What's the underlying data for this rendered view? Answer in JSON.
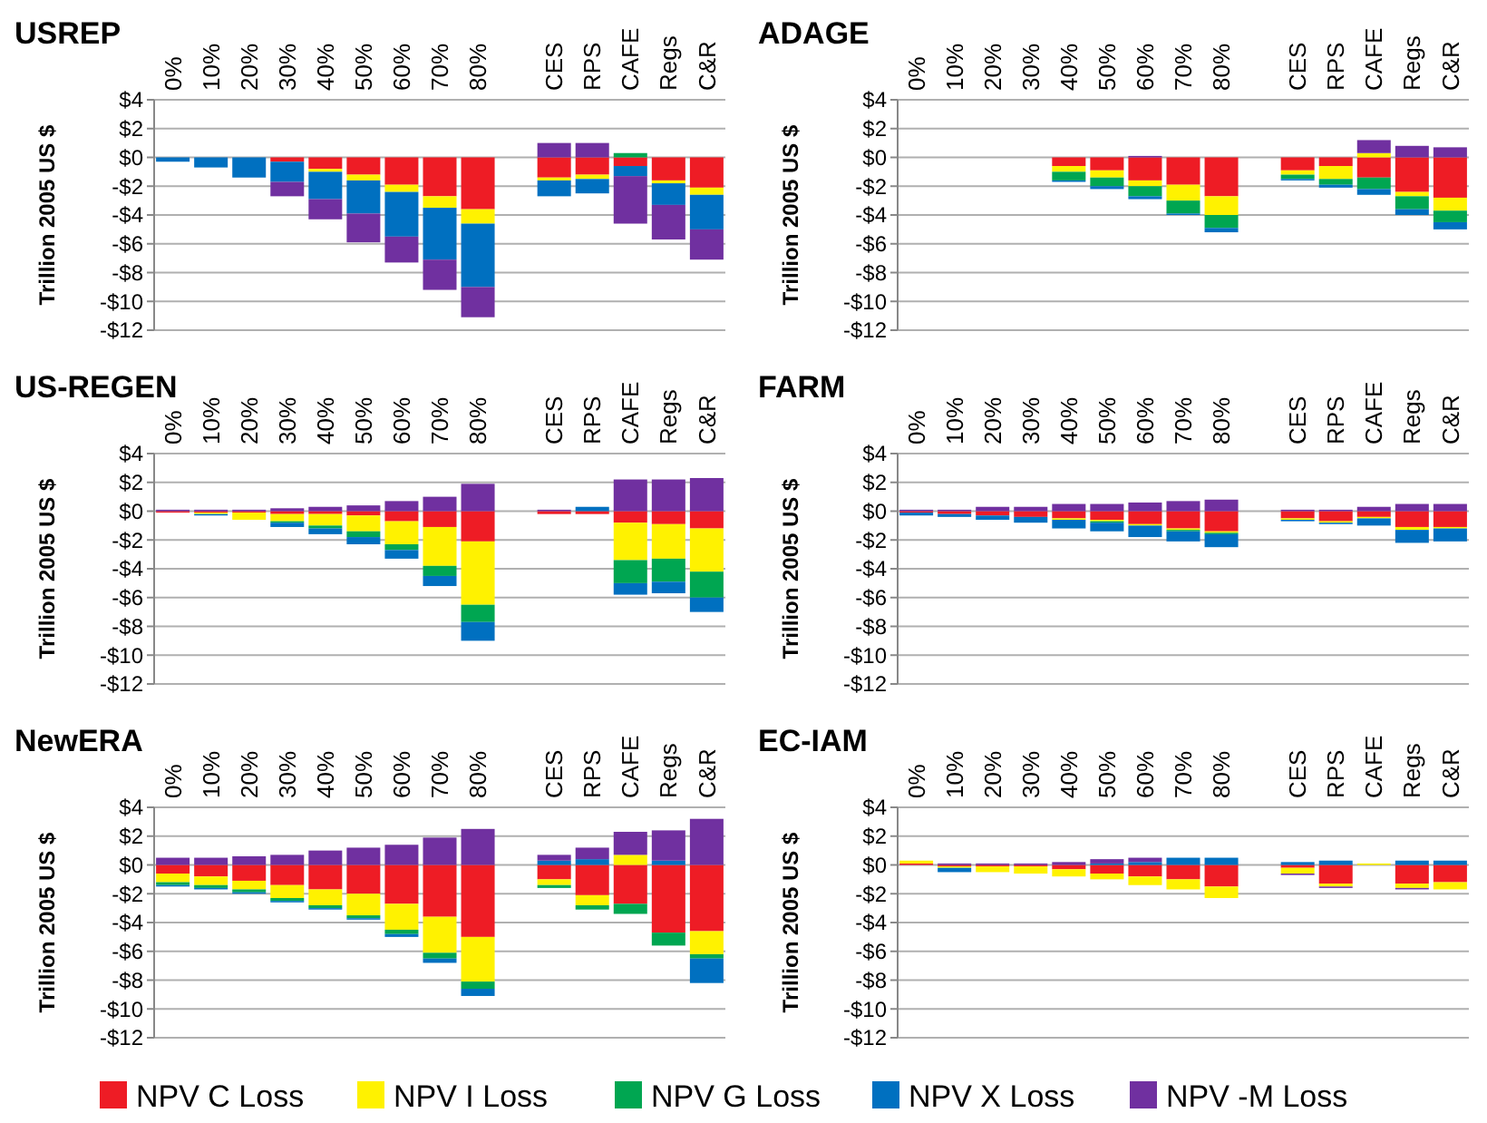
{
  "chart_data": [
    {
      "type": "bar",
      "title": "USREP",
      "ylabel": "Trillion 2005 US $",
      "stacked": true,
      "grid": "y",
      "ylim": [
        -12,
        4
      ],
      "yticks": [
        {
          "value": 4,
          "label": "$4"
        },
        {
          "value": 2,
          "label": "$2"
        },
        {
          "value": 0,
          "label": "$0"
        },
        {
          "value": -2,
          "label": "-$2"
        },
        {
          "value": -4,
          "label": "-$4"
        },
        {
          "value": -6,
          "label": "-$6"
        },
        {
          "value": -8,
          "label": "-$8"
        },
        {
          "value": -10,
          "label": "-$10"
        },
        {
          "value": -12,
          "label": "-$12"
        }
      ],
      "categories": [
        "0%",
        "10%",
        "20%",
        "30%",
        "40%",
        "50%",
        "60%",
        "70%",
        "80%",
        null,
        "CES",
        "RPS",
        "CAFE",
        "Regs",
        "C&R"
      ],
      "series": [
        {
          "color": "#ee1c25",
          "values": [
            0,
            0,
            0,
            -0.3,
            -0.8,
            -1.2,
            -1.9,
            -2.7,
            -3.6,
            null,
            -1.4,
            -1.2,
            -0.6,
            -1.6,
            -2.1
          ]
        },
        {
          "color": "#fff200",
          "values": [
            0,
            0,
            0,
            0,
            -0.2,
            -0.4,
            -0.5,
            -0.8,
            -1.0,
            null,
            -0.2,
            -0.3,
            0,
            -0.2,
            -0.5
          ]
        },
        {
          "color": "#00a651",
          "values": [
            0,
            0,
            0,
            0,
            0,
            0,
            0,
            0,
            0,
            null,
            0,
            0,
            0.3,
            0,
            0
          ]
        },
        {
          "color": "#0070c0",
          "values": [
            -0.3,
            -0.7,
            -1.4,
            -1.4,
            -1.9,
            -2.3,
            -3.1,
            -3.6,
            -4.4,
            null,
            -1.1,
            -1.0,
            -0.7,
            -1.5,
            -2.4
          ]
        },
        {
          "color": "#7030a0",
          "values": [
            0,
            0,
            0,
            -1.0,
            -1.4,
            -2.0,
            -1.8,
            -2.1,
            -2.1,
            null,
            1.0,
            1.0,
            -3.3,
            -2.4,
            -2.1
          ]
        }
      ]
    },
    {
      "type": "bar",
      "title": "ADAGE",
      "ylabel": "Trillion 2005 US $",
      "stacked": true,
      "grid": "y",
      "ylim": [
        -12,
        4
      ],
      "yticks": [
        {
          "value": 4,
          "label": "$4"
        },
        {
          "value": 2,
          "label": "$2"
        },
        {
          "value": 0,
          "label": "$0"
        },
        {
          "value": -2,
          "label": "-$2"
        },
        {
          "value": -4,
          "label": "-$4"
        },
        {
          "value": -6,
          "label": "-$6"
        },
        {
          "value": -8,
          "label": "-$8"
        },
        {
          "value": -10,
          "label": "-$10"
        },
        {
          "value": -12,
          "label": "-$12"
        }
      ],
      "categories": [
        "0%",
        "10%",
        "20%",
        "30%",
        "40%",
        "50%",
        "60%",
        "70%",
        "80%",
        null,
        "CES",
        "RPS",
        "CAFE",
        "Regs",
        "C&R"
      ],
      "series": [
        {
          "color": "#ee1c25",
          "values": [
            0,
            0,
            0,
            0,
            -0.6,
            -0.9,
            -1.6,
            -1.9,
            -2.7,
            null,
            -0.9,
            -0.6,
            -1.4,
            -2.4,
            -2.8
          ]
        },
        {
          "color": "#fff200",
          "values": [
            0,
            0,
            0,
            0,
            -0.4,
            -0.5,
            -0.4,
            -1.1,
            -1.3,
            null,
            -0.3,
            -0.9,
            0.3,
            -0.3,
            -0.9
          ]
        },
        {
          "color": "#00a651",
          "values": [
            0,
            0,
            0,
            0,
            -0.6,
            -0.6,
            -0.7,
            -0.9,
            -0.9,
            null,
            -0.3,
            -0.4,
            -0.8,
            -0.9,
            -0.8
          ]
        },
        {
          "color": "#0070c0",
          "values": [
            0,
            0,
            0,
            0,
            -0.1,
            -0.2,
            -0.2,
            -0.1,
            -0.3,
            null,
            -0.1,
            -0.2,
            -0.4,
            -0.4,
            -0.5
          ]
        },
        {
          "color": "#7030a0",
          "values": [
            0,
            0,
            0,
            0,
            0,
            0,
            0.1,
            0,
            0,
            null,
            0,
            0,
            0.9,
            0.8,
            0.7
          ]
        }
      ]
    },
    {
      "type": "bar",
      "title": "US-REGEN",
      "ylabel": "Trillion 2005 US $",
      "stacked": true,
      "grid": "y",
      "ylim": [
        -12,
        4
      ],
      "yticks": [
        {
          "value": 4,
          "label": "$4"
        },
        {
          "value": 2,
          "label": "$2"
        },
        {
          "value": 0,
          "label": "$0"
        },
        {
          "value": -2,
          "label": "-$2"
        },
        {
          "value": -4,
          "label": "-$4"
        },
        {
          "value": -6,
          "label": "-$6"
        },
        {
          "value": -8,
          "label": "-$8"
        },
        {
          "value": -10,
          "label": "-$10"
        },
        {
          "value": -12,
          "label": "-$12"
        }
      ],
      "categories": [
        "0%",
        "10%",
        "20%",
        "30%",
        "40%",
        "50%",
        "60%",
        "70%",
        "80%",
        null,
        "CES",
        "RPS",
        "CAFE",
        "Regs",
        "C&R"
      ],
      "series": [
        {
          "color": "#ee1c25",
          "values": [
            -0.1,
            -0.1,
            -0.1,
            -0.2,
            -0.2,
            -0.3,
            -0.7,
            -1.1,
            -2.1,
            null,
            -0.2,
            -0.2,
            -0.8,
            -0.9,
            -1.2
          ]
        },
        {
          "color": "#fff200",
          "values": [
            0,
            -0.1,
            -0.5,
            -0.5,
            -0.8,
            -1.1,
            -1.6,
            -2.7,
            -4.4,
            null,
            0,
            0,
            -2.6,
            -2.4,
            -3.0
          ]
        },
        {
          "color": "#00a651",
          "values": [
            0,
            0,
            0,
            -0.1,
            -0.2,
            -0.4,
            -0.4,
            -0.7,
            -1.2,
            null,
            0,
            0,
            -1.6,
            -1.6,
            -1.8
          ]
        },
        {
          "color": "#0070c0",
          "values": [
            0,
            -0.1,
            0,
            -0.3,
            -0.4,
            -0.5,
            -0.6,
            -0.7,
            -1.3,
            null,
            0,
            0.3,
            -0.8,
            -0.8,
            -1.0
          ]
        },
        {
          "color": "#7030a0",
          "values": [
            0.1,
            0.1,
            0.1,
            0.2,
            0.3,
            0.4,
            0.7,
            1.0,
            1.9,
            null,
            0.1,
            0,
            2.2,
            2.2,
            2.3
          ]
        }
      ]
    },
    {
      "type": "bar",
      "title": "FARM",
      "ylabel": "Trillion 2005 US $",
      "stacked": true,
      "grid": "y",
      "ylim": [
        -12,
        4
      ],
      "yticks": [
        {
          "value": 4,
          "label": "$4"
        },
        {
          "value": 2,
          "label": "$2"
        },
        {
          "value": 0,
          "label": "$0"
        },
        {
          "value": -2,
          "label": "-$2"
        },
        {
          "value": -4,
          "label": "-$4"
        },
        {
          "value": -6,
          "label": "-$6"
        },
        {
          "value": -8,
          "label": "-$8"
        },
        {
          "value": -10,
          "label": "-$10"
        },
        {
          "value": -12,
          "label": "-$12"
        }
      ],
      "categories": [
        "0%",
        "10%",
        "20%",
        "30%",
        "40%",
        "50%",
        "60%",
        "70%",
        "80%",
        null,
        "CES",
        "RPS",
        "CAFE",
        "Regs",
        "C&R"
      ],
      "series": [
        {
          "color": "#ee1c25",
          "values": [
            -0.1,
            -0.2,
            -0.3,
            -0.4,
            -0.5,
            -0.6,
            -0.9,
            -1.2,
            -1.4,
            null,
            -0.5,
            -0.7,
            -0.4,
            -1.1,
            -1.1
          ]
        },
        {
          "color": "#fff200",
          "values": [
            0,
            0,
            0,
            0,
            -0.1,
            -0.1,
            -0.1,
            -0.1,
            -0.1,
            null,
            -0.1,
            -0.1,
            -0.1,
            -0.2,
            -0.1
          ]
        },
        {
          "color": "#00a651",
          "values": [
            0,
            0,
            0,
            0,
            0,
            -0.1,
            0,
            -0.1,
            -0.1,
            null,
            0,
            0,
            0,
            0,
            0
          ]
        },
        {
          "color": "#0070c0",
          "values": [
            -0.2,
            -0.2,
            -0.3,
            -0.4,
            -0.6,
            -0.6,
            -0.8,
            -0.7,
            -0.9,
            null,
            -0.1,
            -0.1,
            -0.5,
            -0.9,
            -0.9
          ]
        },
        {
          "color": "#7030a0",
          "values": [
            0.1,
            0.1,
            0.3,
            0.3,
            0.5,
            0.5,
            0.6,
            0.7,
            0.8,
            null,
            0.1,
            0.1,
            0.3,
            0.5,
            0.5
          ]
        }
      ]
    },
    {
      "type": "bar",
      "title": "NewERA",
      "ylabel": "Trillion 2005 US $",
      "stacked": true,
      "grid": "y",
      "ylim": [
        -12,
        4
      ],
      "yticks": [
        {
          "value": 4,
          "label": "$4"
        },
        {
          "value": 2,
          "label": "$2"
        },
        {
          "value": 0,
          "label": "$0"
        },
        {
          "value": -2,
          "label": "-$2"
        },
        {
          "value": -4,
          "label": "-$4"
        },
        {
          "value": -6,
          "label": "-$6"
        },
        {
          "value": -8,
          "label": "-$8"
        },
        {
          "value": -10,
          "label": "-$10"
        },
        {
          "value": -12,
          "label": "-$12"
        }
      ],
      "categories": [
        "0%",
        "10%",
        "20%",
        "30%",
        "40%",
        "50%",
        "60%",
        "70%",
        "80%",
        null,
        "CES",
        "RPS",
        "CAFE",
        "Regs",
        "C&R"
      ],
      "series": [
        {
          "color": "#ee1c25",
          "values": [
            -0.6,
            -0.8,
            -1.1,
            -1.4,
            -1.7,
            -2.0,
            -2.7,
            -3.6,
            -5.0,
            null,
            -1.0,
            -2.1,
            -2.7,
            -4.7,
            -4.6
          ]
        },
        {
          "color": "#fff200",
          "values": [
            -0.6,
            -0.6,
            -0.6,
            -0.9,
            -1.1,
            -1.5,
            -1.8,
            -2.5,
            -3.1,
            null,
            -0.4,
            -0.7,
            0.7,
            0,
            -1.6
          ]
        },
        {
          "color": "#00a651",
          "values": [
            -0.2,
            -0.2,
            -0.2,
            -0.2,
            -0.2,
            -0.2,
            -0.3,
            -0.4,
            -0.5,
            null,
            -0.2,
            -0.3,
            -0.7,
            -0.9,
            -0.3
          ]
        },
        {
          "color": "#0070c0",
          "values": [
            -0.1,
            -0.1,
            -0.1,
            -0.1,
            -0.1,
            -0.1,
            -0.2,
            -0.3,
            -0.5,
            null,
            0.3,
            0.4,
            0,
            0.3,
            -1.7
          ]
        },
        {
          "color": "#7030a0",
          "values": [
            0.5,
            0.5,
            0.6,
            0.7,
            1.0,
            1.2,
            1.4,
            1.9,
            2.5,
            null,
            0.4,
            0.8,
            1.6,
            2.1,
            3.2
          ]
        }
      ]
    },
    {
      "type": "bar",
      "title": "EC-IAM",
      "ylabel": "Trillion 2005 US $",
      "stacked": true,
      "grid": "y",
      "ylim": [
        -12,
        4
      ],
      "legend": "bottom",
      "yticks": [
        {
          "value": 4,
          "label": "$4"
        },
        {
          "value": 2,
          "label": "$2"
        },
        {
          "value": 0,
          "label": "$0"
        },
        {
          "value": -2,
          "label": "-$2"
        },
        {
          "value": -4,
          "label": "-$4"
        },
        {
          "value": -6,
          "label": "-$6"
        },
        {
          "value": -8,
          "label": "-$8"
        },
        {
          "value": -10,
          "label": "-$10"
        },
        {
          "value": -12,
          "label": "-$12"
        }
      ],
      "categories": [
        "0%",
        "10%",
        "20%",
        "30%",
        "40%",
        "50%",
        "60%",
        "70%",
        "80%",
        null,
        "CES",
        "RPS",
        "CAFE",
        "Regs",
        "C&R"
      ],
      "series": [
        {
          "name": "NPV C Loss",
          "color": "#ee1c25",
          "values": [
            0.1,
            -0.1,
            -0.1,
            -0.1,
            -0.3,
            -0.6,
            -0.8,
            -1.0,
            -1.5,
            null,
            -0.2,
            -1.3,
            0,
            -1.3,
            -1.2
          ]
        },
        {
          "name": "NPV I Loss",
          "color": "#fff200",
          "values": [
            0.2,
            -0.1,
            -0.4,
            -0.5,
            -0.5,
            -0.4,
            -0.6,
            -0.7,
            -0.8,
            null,
            -0.4,
            -0.2,
            0.1,
            -0.3,
            -0.5
          ]
        },
        {
          "name": "NPV G Loss",
          "color": "#00a651",
          "values": [
            0,
            0,
            0,
            0,
            0,
            0,
            0,
            0,
            0,
            null,
            0,
            0,
            0,
            0,
            0
          ]
        },
        {
          "name": "NPV X Loss",
          "color": "#0070c0",
          "values": [
            0,
            -0.3,
            0,
            0,
            0,
            0.1,
            0.2,
            0.5,
            0.5,
            null,
            0.2,
            0.3,
            0,
            0.3,
            0.3
          ]
        },
        {
          "name": "NPV -M Loss",
          "color": "#7030a0",
          "values": [
            0,
            0.1,
            0.1,
            0.1,
            0.2,
            0.3,
            0.3,
            0,
            0,
            null,
            -0.1,
            -0.1,
            0,
            -0.1,
            0
          ]
        }
      ]
    }
  ]
}
